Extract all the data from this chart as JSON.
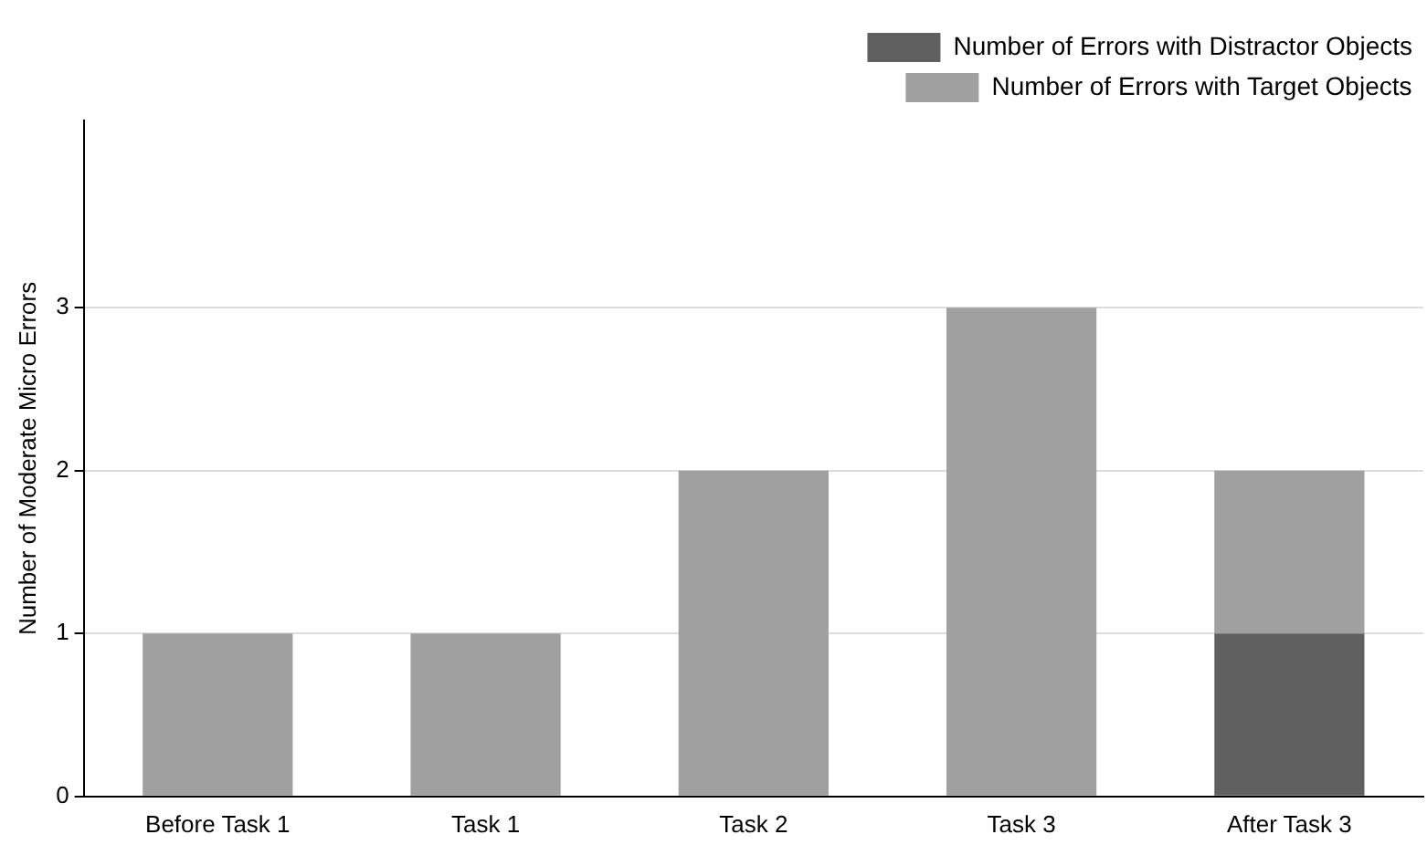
{
  "chart_data": {
    "type": "bar",
    "stacked": true,
    "ylabel": "Number of Moderate Micro Errors",
    "categories": [
      "Before Task 1",
      "Task 1",
      "Task 2",
      "Task 3",
      "After Task 3"
    ],
    "series": [
      {
        "name": "Number of Errors with Distractor Objects",
        "color": "#606060",
        "values": [
          0,
          0,
          0,
          0,
          1
        ]
      },
      {
        "name": "Number of Errors with Target Objects",
        "color": "#a0a0a0",
        "values": [
          1,
          1,
          2,
          3,
          1
        ]
      }
    ],
    "ylim": [
      0,
      4.15
    ],
    "yticks": [
      0,
      1,
      2,
      3
    ],
    "grid": "y",
    "legend": "top right"
  }
}
